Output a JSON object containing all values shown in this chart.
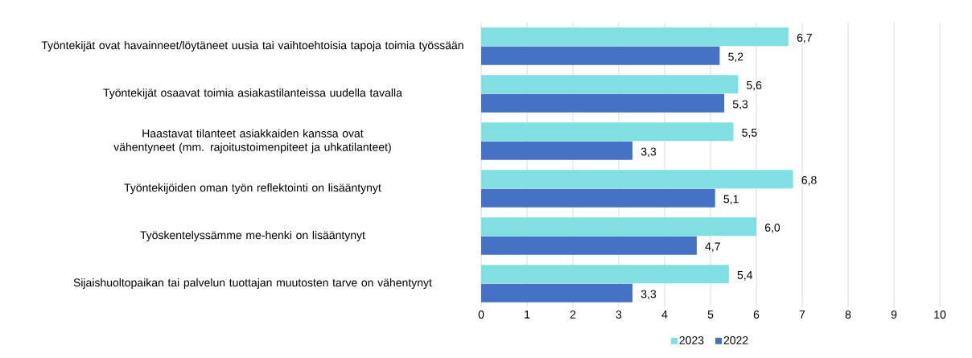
{
  "chart_data": {
    "type": "bar",
    "orientation": "horizontal",
    "categories": [
      "Työntekijät ovat havainneet/löytäneet uusia tai vaihtoehtoisia tapoja toimia työssään",
      "Työntekijät osaavat toimia asiakastilanteissa uudella tavalla",
      "Haastavat tilanteet asiakkaiden kanssa ovat vähentyneet (mm. rajoitustoimenpiteet ja uhkatilanteet)",
      "Työntekijöiden oman työn reflektointi on lisääntynyt",
      "Työskentelyssämme me-henki on lisääntynyt",
      "Sijaishuoltopaikan tai palvelun tuottajan muutosten tarve on vähentynyt"
    ],
    "series": [
      {
        "name": "2023",
        "color": "#80dfe0",
        "values": [
          6.7,
          5.6,
          5.5,
          6.8,
          6.0,
          5.4
        ],
        "value_labels": [
          "6,7",
          "5,6",
          "5,5",
          "6,8",
          "6,0",
          "5,4"
        ]
      },
      {
        "name": "2022",
        "color": "#4472c4",
        "values": [
          5.2,
          5.3,
          3.3,
          5.1,
          4.7,
          3.3
        ],
        "value_labels": [
          "5,2",
          "5,3",
          "3,3",
          "5,1",
          "4,7",
          "3,3"
        ]
      }
    ],
    "xlim": [
      0,
      10
    ],
    "xticks": [
      0,
      1,
      2,
      3,
      4,
      5,
      6,
      7,
      8,
      9,
      10
    ],
    "grid": "x",
    "legend": "bottom"
  }
}
